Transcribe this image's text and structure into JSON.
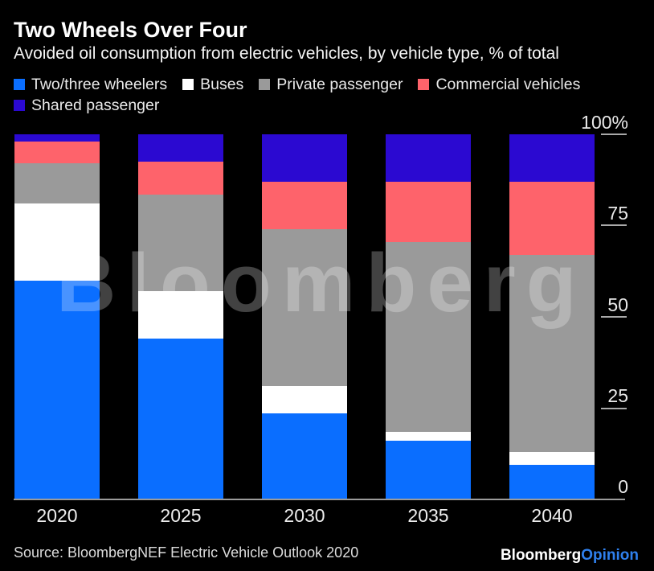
{
  "watermark": {
    "text": "Bloomberg"
  },
  "chart_data": {
    "type": "bar",
    "stacked": true,
    "units": "% of total",
    "title": "Two Wheels Over Four",
    "subtitle": "Avoided oil consumption from electric vehicles, by vehicle type, % of total",
    "categories": [
      "2020",
      "2025",
      "2030",
      "2035",
      "2040"
    ],
    "series": [
      {
        "name": "Two/three wheelers",
        "color": "#0a6eff",
        "values": [
          60,
          44,
          23.5,
          16,
          9.5
        ]
      },
      {
        "name": "Buses",
        "color": "#ffffff",
        "values": [
          21,
          13,
          7.5,
          2.5,
          3.5
        ]
      },
      {
        "name": "Private passenger",
        "color": "#9a9a9a",
        "values": [
          11,
          26.5,
          43,
          52,
          54
        ]
      },
      {
        "name": "Commercial vehicles",
        "color": "#fe636b",
        "values": [
          6,
          9,
          13,
          16.5,
          20
        ]
      },
      {
        "name": "Shared passenger",
        "color": "#2b09d1",
        "values": [
          2,
          7.5,
          13,
          13,
          13
        ]
      }
    ],
    "y_tick_labels": [
      "100%",
      "75",
      "50",
      "25",
      "0"
    ],
    "ylim": [
      0,
      100
    ],
    "y_axis_side": "right",
    "grid": false,
    "legend_position": "top"
  },
  "footer": {
    "source": "Source: BloombergNEF Electric Vehicle Outlook 2020",
    "brand": "Bloomberg",
    "brand_suffix": "Opinion"
  }
}
